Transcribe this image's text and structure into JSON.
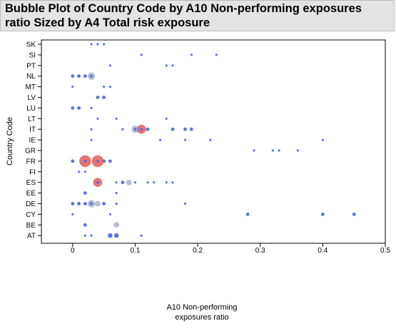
{
  "chart_data": {
    "type": "scatter",
    "title": "Bubble Plot of Country Code by A10 Non-performing exposures ratio Sized by A4 Total risk exposure",
    "xlabel": "A10 Non-performing exposures ratio",
    "ylabel": "Country Code",
    "xlim": [
      -0.05,
      0.5
    ],
    "xticks": [
      "0",
      "0.1",
      "0.2",
      "0.3",
      "0.4",
      "0.5"
    ],
    "xtick_values": [
      0,
      0.1,
      0.2,
      0.3,
      0.4,
      0.5
    ],
    "categories": [
      "SK",
      "SI",
      "PT",
      "NL",
      "MT",
      "LV",
      "LU",
      "LT",
      "IT",
      "IE",
      "GR",
      "FR",
      "FI",
      "ES",
      "EE",
      "DE",
      "CY",
      "BE",
      "AT"
    ],
    "grid": false,
    "legend": "none",
    "colors": {
      "small": "#4d6be0",
      "medium": "#a8b1cc",
      "large": "#e05a5a",
      "title_bg": "#e4e4e4"
    },
    "points": [
      {
        "y": "SK",
        "x": 0.03,
        "size": 1
      },
      {
        "y": "SK",
        "x": 0.04,
        "size": 1
      },
      {
        "y": "SK",
        "x": 0.05,
        "size": 1
      },
      {
        "y": "SI",
        "x": 0.11,
        "size": 1
      },
      {
        "y": "SI",
        "x": 0.19,
        "size": 1
      },
      {
        "y": "SI",
        "x": 0.23,
        "size": 1
      },
      {
        "y": "PT",
        "x": 0.06,
        "size": 1
      },
      {
        "y": "PT",
        "x": 0.15,
        "size": 1
      },
      {
        "y": "PT",
        "x": 0.16,
        "size": 1
      },
      {
        "y": "NL",
        "x": 0.0,
        "size": 2
      },
      {
        "y": "NL",
        "x": 0.01,
        "size": 2
      },
      {
        "y": "NL",
        "x": 0.02,
        "size": 2
      },
      {
        "y": "NL",
        "x": 0.03,
        "size": 5
      },
      {
        "y": "MT",
        "x": 0.0,
        "size": 1
      },
      {
        "y": "MT",
        "x": 0.05,
        "size": 1
      },
      {
        "y": "MT",
        "x": 0.06,
        "size": 1
      },
      {
        "y": "LV",
        "x": 0.04,
        "size": 2
      },
      {
        "y": "LV",
        "x": 0.05,
        "size": 2
      },
      {
        "y": "LU",
        "x": 0.0,
        "size": 2
      },
      {
        "y": "LU",
        "x": 0.01,
        "size": 2
      },
      {
        "y": "LU",
        "x": 0.03,
        "size": 1
      },
      {
        "y": "LT",
        "x": 0.04,
        "size": 1
      },
      {
        "y": "LT",
        "x": 0.07,
        "size": 1
      },
      {
        "y": "LT",
        "x": 0.15,
        "size": 1
      },
      {
        "y": "IT",
        "x": 0.03,
        "size": 1
      },
      {
        "y": "IT",
        "x": 0.08,
        "size": 1
      },
      {
        "y": "IT",
        "x": 0.1,
        "size": 5
      },
      {
        "y": "IT",
        "x": 0.11,
        "size": 6
      },
      {
        "y": "IT",
        "x": 0.12,
        "size": 2
      },
      {
        "y": "IT",
        "x": 0.16,
        "size": 2
      },
      {
        "y": "IT",
        "x": 0.18,
        "size": 2
      },
      {
        "y": "IT",
        "x": 0.19,
        "size": 2
      },
      {
        "y": "IE",
        "x": 0.03,
        "size": 1
      },
      {
        "y": "IE",
        "x": 0.14,
        "size": 1
      },
      {
        "y": "IE",
        "x": 0.18,
        "size": 1
      },
      {
        "y": "IE",
        "x": 0.22,
        "size": 1
      },
      {
        "y": "IE",
        "x": 0.4,
        "size": 1
      },
      {
        "y": "GR",
        "x": 0.29,
        "size": 1
      },
      {
        "y": "GR",
        "x": 0.32,
        "size": 1
      },
      {
        "y": "GR",
        "x": 0.33,
        "size": 1
      },
      {
        "y": "GR",
        "x": 0.36,
        "size": 1
      },
      {
        "y": "FR",
        "x": 0.0,
        "size": 2
      },
      {
        "y": "FR",
        "x": 0.02,
        "size": 8
      },
      {
        "y": "FR",
        "x": 0.04,
        "size": 8
      },
      {
        "y": "FR",
        "x": 0.05,
        "size": 2
      },
      {
        "y": "FR",
        "x": 0.06,
        "size": 2
      },
      {
        "y": "FI",
        "x": 0.01,
        "size": 1
      },
      {
        "y": "FI",
        "x": 0.02,
        "size": 1
      },
      {
        "y": "ES",
        "x": 0.04,
        "size": 6
      },
      {
        "y": "ES",
        "x": 0.07,
        "size": 1
      },
      {
        "y": "ES",
        "x": 0.08,
        "size": 2
      },
      {
        "y": "ES",
        "x": 0.09,
        "size": 4
      },
      {
        "y": "ES",
        "x": 0.1,
        "size": 1
      },
      {
        "y": "ES",
        "x": 0.12,
        "size": 1
      },
      {
        "y": "ES",
        "x": 0.13,
        "size": 1
      },
      {
        "y": "ES",
        "x": 0.15,
        "size": 1
      },
      {
        "y": "ES",
        "x": 0.16,
        "size": 1
      },
      {
        "y": "EE",
        "x": 0.02,
        "size": 2
      },
      {
        "y": "EE",
        "x": 0.07,
        "size": 1
      },
      {
        "y": "DE",
        "x": 0.0,
        "size": 2
      },
      {
        "y": "DE",
        "x": 0.01,
        "size": 2
      },
      {
        "y": "DE",
        "x": 0.02,
        "size": 2
      },
      {
        "y": "DE",
        "x": 0.03,
        "size": 5
      },
      {
        "y": "DE",
        "x": 0.04,
        "size": 4
      },
      {
        "y": "DE",
        "x": 0.05,
        "size": 2
      },
      {
        "y": "DE",
        "x": 0.07,
        "size": 1
      },
      {
        "y": "DE",
        "x": 0.18,
        "size": 1
      },
      {
        "y": "CY",
        "x": 0.0,
        "size": 1
      },
      {
        "y": "CY",
        "x": 0.06,
        "size": 1
      },
      {
        "y": "CY",
        "x": 0.28,
        "size": 2
      },
      {
        "y": "CY",
        "x": 0.4,
        "size": 2
      },
      {
        "y": "CY",
        "x": 0.45,
        "size": 2
      },
      {
        "y": "BE",
        "x": 0.02,
        "size": 2
      },
      {
        "y": "BE",
        "x": 0.07,
        "size": 4
      },
      {
        "y": "AT",
        "x": 0.02,
        "size": 1
      },
      {
        "y": "AT",
        "x": 0.03,
        "size": 1
      },
      {
        "y": "AT",
        "x": 0.06,
        "size": 3
      },
      {
        "y": "AT",
        "x": 0.07,
        "size": 3
      },
      {
        "y": "AT",
        "x": 0.11,
        "size": 1
      }
    ]
  }
}
